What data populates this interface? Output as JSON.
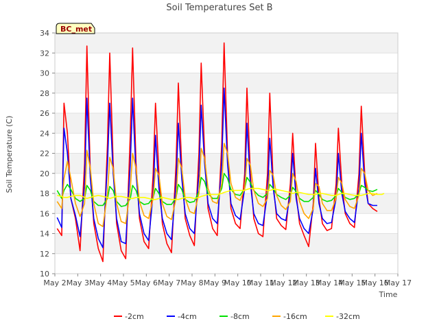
{
  "chart_data": {
    "type": "line",
    "title": "Soil Temperatures Set B",
    "xlabel": "Time",
    "ylabel": "Soil Temperature (C)",
    "station_badge": "BC_met",
    "ylim": [
      10,
      34
    ],
    "yticks": [
      10,
      12,
      14,
      16,
      18,
      20,
      22,
      24,
      26,
      28,
      30,
      32,
      34
    ],
    "xlim": [
      0,
      15
    ],
    "xticks": [
      "May 2",
      "May 3",
      "May 4",
      "May 5",
      "May 6",
      "May 7",
      "May 8",
      "May 9",
      "May 10",
      "May 11",
      "May 12",
      "May 13",
      "May 14",
      "May 15",
      "May 16",
      "May 17"
    ],
    "grid": "horizontal alternating bands",
    "legend_position": "bottom",
    "x_day_offsets": [
      0.1,
      0.3,
      0.4,
      0.55,
      0.7,
      0.9,
      1.1,
      1.3,
      1.4,
      1.55,
      1.7,
      1.9,
      2.1,
      2.3,
      2.4,
      2.55,
      2.7,
      2.9,
      3.1,
      3.3,
      3.4,
      3.55,
      3.7,
      3.9,
      4.1,
      4.3,
      4.4,
      4.55,
      4.7,
      4.9,
      5.1,
      5.3,
      5.4,
      5.55,
      5.7,
      5.9,
      6.1,
      6.3,
      6.4,
      6.55,
      6.7,
      6.9,
      7.1,
      7.3,
      7.4,
      7.55,
      7.7,
      7.9,
      8.1,
      8.3,
      8.4,
      8.55,
      8.7,
      8.9,
      9.1,
      9.3,
      9.4,
      9.55,
      9.7,
      9.9,
      10.1,
      10.3,
      10.4,
      10.55,
      10.7,
      10.9,
      11.1,
      11.3,
      11.4,
      11.55,
      11.7,
      11.9,
      12.1,
      12.3,
      12.4,
      12.55,
      12.7,
      12.9,
      13.1,
      13.3,
      13.4,
      13.55,
      13.7,
      13.9,
      14.1,
      14.3,
      14.4
    ],
    "series": [
      {
        "name": "-2cm",
        "color": "#ff0000",
        "values": [
          14.5,
          13.8,
          27,
          24,
          17.5,
          15.5,
          12.3,
          21,
          32.7,
          20,
          15,
          12.5,
          11.2,
          23,
          32,
          21,
          15,
          12.3,
          11.5,
          24,
          32.5,
          21,
          15.5,
          13.2,
          12.5,
          20,
          27,
          20,
          15,
          13,
          12.1,
          21,
          29,
          20.5,
          15.5,
          13.8,
          12.8,
          22,
          31,
          22,
          16.5,
          14.5,
          13.8,
          23,
          33,
          22,
          16.5,
          15,
          14.5,
          20,
          28.5,
          20,
          15.5,
          14,
          13.7,
          20,
          28,
          19,
          15.5,
          14.8,
          14.4,
          19,
          24,
          18,
          15,
          13.8,
          12.7,
          17,
          23,
          17.5,
          15,
          14.3,
          14.5,
          19,
          24.5,
          19,
          16,
          15,
          14.6,
          20,
          26.7,
          20,
          17,
          16.5,
          16.2
        ]
      },
      {
        "name": "-4cm",
        "color": "#0000ff",
        "values": [
          15.6,
          14.6,
          24.5,
          22,
          17.5,
          15.8,
          13.7,
          19,
          27.5,
          19.5,
          15.5,
          13.5,
          12.6,
          21,
          27,
          20,
          15.5,
          13.2,
          13,
          21,
          27.5,
          20,
          16,
          14,
          13.3,
          18,
          23.8,
          18.5,
          15.5,
          14,
          13.4,
          19,
          25,
          19.5,
          16,
          14.5,
          14,
          20,
          26.8,
          21,
          17,
          15.5,
          15,
          21,
          28.5,
          21,
          17,
          15.8,
          15.4,
          18.5,
          25,
          19,
          16,
          15,
          14.8,
          18,
          23.5,
          18.5,
          16,
          15.5,
          15.3,
          18,
          22,
          17.5,
          15.5,
          14.5,
          14,
          16.5,
          20.5,
          17,
          15.5,
          15,
          15.1,
          17.5,
          22,
          18,
          16.2,
          15.5,
          15.1,
          18.5,
          24,
          19,
          17,
          16.8,
          16.8
        ]
      },
      {
        "name": "-8cm",
        "color": "#00e000",
        "values": [
          18.3,
          17.5,
          18.3,
          18.9,
          18.4,
          17.5,
          17.2,
          17.5,
          18.8,
          18.3,
          17.2,
          16.8,
          16.8,
          17.5,
          18.7,
          18.3,
          17.2,
          16.7,
          16.8,
          17.5,
          18.8,
          18.3,
          17.2,
          16.9,
          17,
          17.6,
          18.5,
          18,
          17.2,
          16.9,
          16.9,
          17.6,
          18.9,
          18.4,
          17.4,
          17.1,
          17.2,
          18.2,
          19.6,
          19.2,
          18,
          17.5,
          17.5,
          18.5,
          20,
          19.5,
          18.4,
          17.9,
          17.8,
          18.5,
          19.6,
          19.1,
          18.3,
          17.8,
          17.6,
          18,
          18.9,
          18.5,
          17.9,
          17.6,
          17.4,
          17.8,
          18.6,
          18.2,
          17.5,
          17.2,
          17.2,
          17.6,
          18.3,
          17.9,
          17.4,
          17.2,
          17.3,
          17.8,
          18.5,
          18.1,
          17.6,
          17.4,
          17.5,
          18,
          18.8,
          18.6,
          18.3,
          18.2,
          18.4
        ]
      },
      {
        "name": "-16cm",
        "color": "#ffa500",
        "values": [
          17.2,
          16.5,
          19.5,
          21.2,
          19.5,
          17,
          15.7,
          17,
          22.3,
          20.5,
          17,
          15,
          14.7,
          18,
          21.6,
          20.5,
          17,
          15.2,
          15,
          18.5,
          22,
          20.5,
          17.2,
          15.8,
          15.5,
          17.5,
          20.5,
          19.8,
          17,
          15.7,
          15.4,
          17.5,
          21.5,
          20.5,
          17.5,
          16.2,
          16,
          18,
          22.5,
          21.5,
          18.5,
          17.2,
          17,
          19,
          23,
          22,
          19,
          17.6,
          17.3,
          18.5,
          21.5,
          20.8,
          18.3,
          17,
          16.7,
          17.5,
          20.3,
          19.8,
          17.8,
          16.8,
          16.4,
          17.2,
          20,
          19.2,
          17.2,
          16,
          15.5,
          16.5,
          19,
          18.7,
          17,
          16.3,
          16.3,
          17.5,
          19.6,
          19,
          17.4,
          16.7,
          16.5,
          17.8,
          20.5,
          20,
          18.3,
          17.8,
          18
        ]
      },
      {
        "name": "-32cm",
        "color": "#ffff00",
        "values": [
          17.8,
          17.7,
          17.6,
          17.6,
          17.7,
          17.8,
          17.8,
          17.6,
          17.5,
          17.6,
          17.7,
          17.8,
          17.7,
          17.6,
          17.5,
          17.6,
          17.7,
          17.7,
          17.6,
          17.5,
          17.5,
          17.6,
          17.6,
          17.6,
          17.5,
          17.4,
          17.4,
          17.5,
          17.6,
          17.5,
          17.4,
          17.4,
          17.4,
          17.5,
          17.6,
          17.6,
          17.5,
          17.6,
          17.7,
          17.8,
          17.9,
          17.9,
          17.9,
          18,
          18.1,
          18.2,
          18.3,
          18.3,
          18.3,
          18.3,
          18.4,
          18.5,
          18.5,
          18.5,
          18.4,
          18.3,
          18.3,
          18.4,
          18.4,
          18.3,
          18.2,
          18.1,
          18,
          18.1,
          18.1,
          18,
          17.9,
          17.9,
          17.9,
          18,
          18,
          17.9,
          17.8,
          17.8,
          17.9,
          18,
          18,
          17.9,
          17.8,
          17.8,
          17.8,
          17.9,
          18,
          18,
          17.9,
          17.9,
          18
        ]
      }
    ]
  }
}
